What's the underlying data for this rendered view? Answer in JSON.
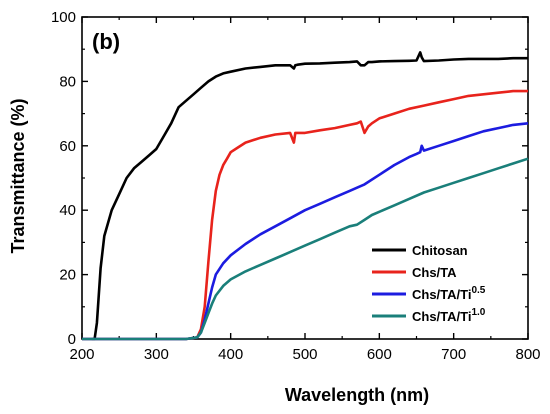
{
  "chart_data": {
    "type": "line",
    "panel_label": "(b)",
    "xlabel": "Wavelength (nm)",
    "ylabel": "Transmittance (%)",
    "xlim": [
      200,
      800
    ],
    "ylim": [
      0,
      100
    ],
    "x_ticks": [
      200,
      300,
      400,
      500,
      600,
      700,
      800
    ],
    "y_ticks": [
      0,
      20,
      40,
      60,
      80,
      100
    ],
    "grid": false,
    "legend_position": "bottom-right",
    "series": [
      {
        "name": "Chitosan",
        "color": "#000000",
        "x": [
          213,
          217,
          220,
          225,
          230,
          240,
          250,
          260,
          270,
          280,
          290,
          300,
          310,
          320,
          330,
          340,
          350,
          360,
          370,
          380,
          390,
          400,
          420,
          440,
          460,
          480,
          485,
          487,
          490,
          500,
          520,
          540,
          560,
          570,
          575,
          580,
          585,
          590,
          600,
          620,
          640,
          650,
          655,
          657,
          660,
          680,
          700,
          720,
          740,
          760,
          780,
          800
        ],
        "y": [
          0,
          0,
          5,
          22,
          32,
          40,
          45,
          50,
          53,
          55,
          57,
          59,
          63,
          67,
          72,
          74,
          76,
          78,
          80,
          81.5,
          82.5,
          83,
          84,
          84.5,
          85,
          85,
          84,
          85,
          85.2,
          85.5,
          85.6,
          85.8,
          86,
          86.2,
          85,
          85,
          86,
          86,
          86.2,
          86.3,
          86.4,
          86.5,
          89,
          87.5,
          86.3,
          86.5,
          86.8,
          87,
          87,
          87,
          87.2,
          87.2
        ]
      },
      {
        "name": "Chs/TA",
        "color": "#e8231c",
        "x": [
          200,
          340,
          355,
          360,
          365,
          370,
          375,
          380,
          385,
          390,
          395,
          400,
          410,
          420,
          440,
          460,
          480,
          485,
          487,
          490,
          500,
          520,
          540,
          560,
          570,
          575,
          580,
          585,
          590,
          600,
          620,
          640,
          660,
          680,
          700,
          720,
          740,
          760,
          780,
          800
        ],
        "y": [
          0,
          0,
          0.5,
          3,
          10,
          24,
          37,
          46,
          51,
          54,
          56,
          58,
          59.5,
          61,
          62.5,
          63.5,
          64,
          61,
          64,
          64,
          64,
          64.8,
          65.5,
          66.5,
          67,
          67.5,
          64,
          66,
          67,
          68.5,
          70,
          71.5,
          72.5,
          73.5,
          74.5,
          75.5,
          76,
          76.5,
          77,
          77
        ]
      },
      {
        "name": "Chs/TA/Ti",
        "name_sup": "0.5",
        "color": "#1c1ce0",
        "x": [
          200,
          340,
          355,
          360,
          365,
          370,
          375,
          380,
          390,
          400,
          420,
          440,
          460,
          480,
          500,
          520,
          540,
          560,
          570,
          580,
          600,
          620,
          640,
          650,
          655,
          657,
          660,
          680,
          700,
          720,
          740,
          760,
          780,
          800
        ],
        "y": [
          0,
          0,
          0.5,
          2,
          6,
          11,
          16,
          20,
          23.5,
          26,
          29.5,
          32.5,
          35,
          37.5,
          40,
          42,
          44,
          46,
          47,
          48,
          51,
          54,
          56.5,
          57.5,
          58,
          60,
          58.5,
          60,
          61.5,
          63,
          64.5,
          65.5,
          66.5,
          67
        ]
      },
      {
        "name": "Chs/TA/Ti",
        "name_sup": "1.0",
        "color": "#1a7f7a",
        "x": [
          200,
          340,
          355,
          360,
          365,
          370,
          375,
          380,
          390,
          400,
          420,
          440,
          460,
          480,
          500,
          520,
          540,
          560,
          570,
          580,
          590,
          600,
          620,
          640,
          660,
          680,
          700,
          720,
          740,
          760,
          780,
          800
        ],
        "y": [
          0,
          0,
          0.5,
          2,
          5,
          8,
          11,
          13.5,
          16.5,
          18.5,
          21,
          23,
          25,
          27,
          29,
          31,
          33,
          35,
          35.5,
          37,
          38.5,
          39.5,
          41.5,
          43.5,
          45.5,
          47,
          48.5,
          50,
          51.5,
          53,
          54.5,
          56
        ]
      }
    ]
  }
}
